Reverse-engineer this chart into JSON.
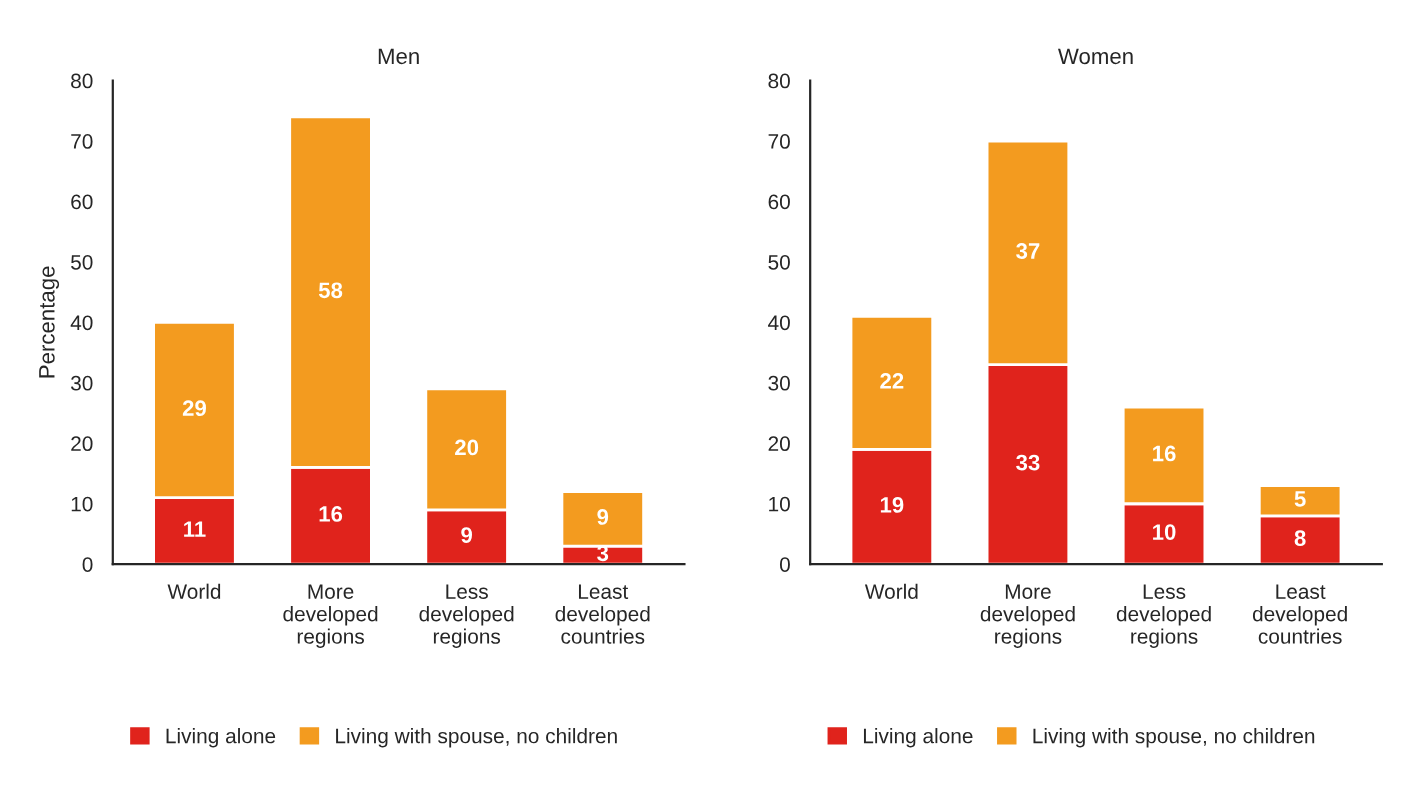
{
  "chart_data": [
    {
      "type": "bar",
      "title": "Men",
      "ylabel": "Percentage",
      "stacked": true,
      "data_labels": true,
      "legend": "bottom",
      "grid": false,
      "categories": [
        "World",
        "More\ndeveloped\nregions",
        "Less\ndeveloped\nregions",
        "Least\ndeveloped\ncountries"
      ],
      "ylim": [
        0,
        80
      ],
      "yticks": [
        0,
        10,
        20,
        30,
        40,
        50,
        60,
        70,
        80
      ],
      "series": [
        {
          "name": "Living alone",
          "color": "#e0231c",
          "values": [
            11,
            16,
            9,
            3
          ]
        },
        {
          "name": "Living with spouse, no children",
          "color": "#f39b1f",
          "values": [
            29,
            58,
            20,
            9
          ]
        }
      ]
    },
    {
      "type": "bar",
      "title": "Women",
      "stacked": true,
      "data_labels": true,
      "legend": "bottom",
      "grid": false,
      "categories": [
        "World",
        "More\ndeveloped\nregions",
        "Less\ndeveloped\nregions",
        "Least\ndeveloped\ncountries"
      ],
      "ylim": [
        0,
        80
      ],
      "yticks": [
        0,
        10,
        20,
        30,
        40,
        50,
        60,
        70,
        80
      ],
      "series": [
        {
          "name": "Living alone",
          "color": "#e0231c",
          "values": [
            19,
            33,
            10,
            8
          ]
        },
        {
          "name": "Living with spouse, no children",
          "color": "#f39b1f",
          "values": [
            22,
            37,
            16,
            5
          ]
        }
      ]
    }
  ]
}
